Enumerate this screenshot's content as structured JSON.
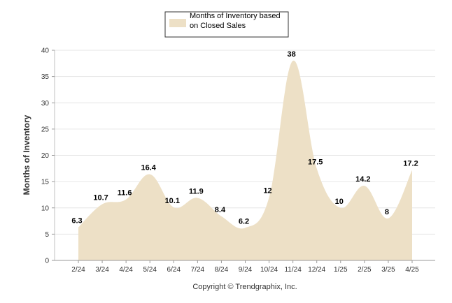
{
  "chart_data": {
    "type": "area",
    "categories": [
      "2/24",
      "3/24",
      "4/24",
      "5/24",
      "6/24",
      "7/24",
      "8/24",
      "9/24",
      "10/24",
      "11/24",
      "12/24",
      "1/25",
      "2/25",
      "3/25",
      "4/25"
    ],
    "series": [
      {
        "name": "Months of Inventory based on Closed Sales",
        "values": [
          6.3,
          10.7,
          11.6,
          16.4,
          10.1,
          11.9,
          8.4,
          6.2,
          12,
          38,
          17.5,
          10,
          14.2,
          8,
          17.2
        ],
        "labels": [
          "6.3",
          "10.7",
          "11.6",
          "16.4",
          "10.1",
          "11.9",
          "8.4",
          "6.2",
          "12",
          "38",
          "17.5",
          "10",
          "14.2",
          "8",
          "17.2"
        ],
        "color": "#ede0c6"
      }
    ],
    "legend": {
      "line1": "Months of Inventory based",
      "line2": "on Closed Sales",
      "position": "top-center"
    },
    "ylabel": "Months of Inventory",
    "xlabel": "",
    "ylim": [
      0,
      40
    ],
    "yticks": [
      "0",
      "5",
      "10",
      "15",
      "20",
      "25",
      "30",
      "35",
      "40"
    ],
    "grid": true,
    "footer": "Copyright © Trendgraphix, Inc."
  }
}
